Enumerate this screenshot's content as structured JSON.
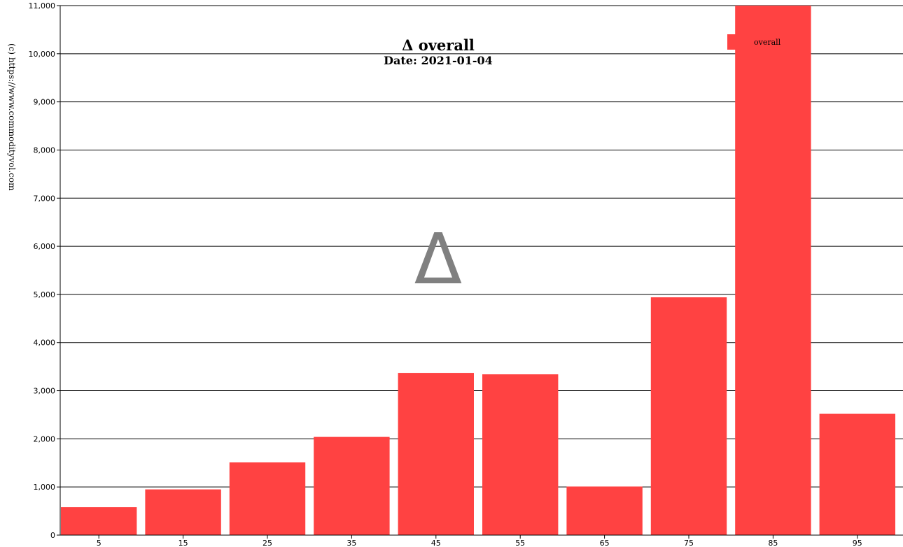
{
  "chart_data": {
    "type": "bar",
    "title": "Δ overall",
    "subtitle": "Date: 2021-01-04",
    "watermark": "(c) https://www.commodityvol.com",
    "center_symbol": "Δ",
    "categories": [
      "5",
      "15",
      "25",
      "35",
      "45",
      "55",
      "65",
      "75",
      "85",
      "95"
    ],
    "series": [
      {
        "name": "overall",
        "color": "#ff4242",
        "values": [
          580,
          950,
          1510,
          2040,
          3370,
          3340,
          1010,
          4940,
          11000,
          2520
        ]
      }
    ],
    "xlim": [
      0,
      100
    ],
    "ylim": [
      0,
      11000
    ],
    "yticks": [
      0,
      1000,
      2000,
      3000,
      4000,
      5000,
      6000,
      7000,
      8000,
      9000,
      10000,
      11000
    ],
    "ytick_labels": [
      "0",
      "1,000",
      "2,000",
      "3,000",
      "4,000",
      "5,000",
      "6,000",
      "7,000",
      "8,000",
      "9,000",
      "10,000",
      "11,000"
    ],
    "grid": true,
    "legend": "top-right"
  }
}
